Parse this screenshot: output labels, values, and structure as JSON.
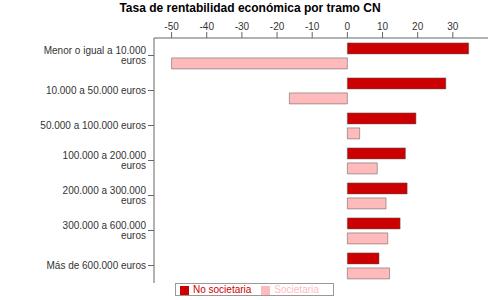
{
  "chart_data": {
    "type": "bar",
    "title": "Tasa de rentabilidad económica por tramo CN",
    "orientation": "horizontal",
    "categories": [
      "Menor o igual a 10.000 euros",
      "10.000 a 50.000 euros",
      "50.000 a 100.000 euros",
      "100.000 a 200.000 euros",
      "200.000 a 300.000 euros",
      "300.000 a 600.000 euros",
      "Más de 600.000 euros"
    ],
    "series": [
      {
        "name": "No societaria",
        "color": "#cc0000",
        "values": [
          34.5,
          28,
          19.5,
          16.5,
          17,
          15,
          9
        ]
      },
      {
        "name": "Societaria",
        "color": "#ffbbbb",
        "values": [
          -50,
          -16.5,
          3.5,
          8.5,
          11,
          11.5,
          12
        ]
      }
    ],
    "xlim": [
      -55,
      40
    ],
    "xticks": [
      -50,
      -40,
      -30,
      -20,
      -10,
      0,
      10,
      20,
      30
    ],
    "grid": false,
    "legend": "bottom"
  }
}
